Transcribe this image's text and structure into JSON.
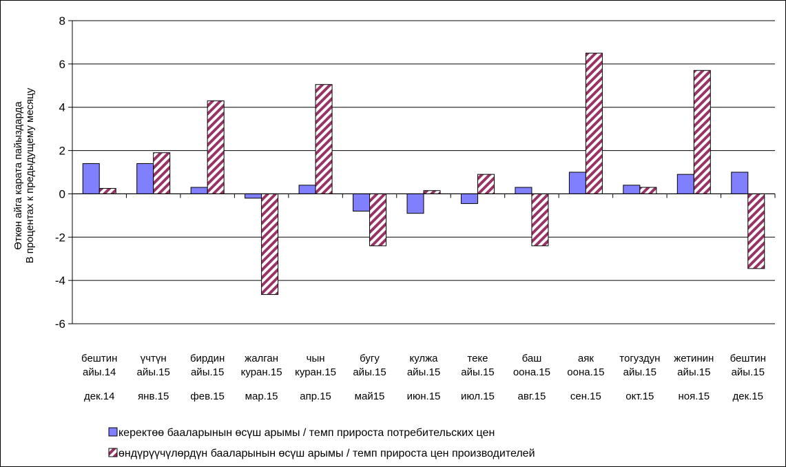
{
  "chart_data": {
    "type": "bar",
    "title": "",
    "ylabel_lines": [
      "Өткөн айга карата пайыздарда",
      "В процентах к предыдущему месяцу"
    ],
    "ylim": [
      -6,
      8
    ],
    "yticks": [
      -6,
      -4,
      -2,
      0,
      2,
      4,
      6,
      8
    ],
    "grid": true,
    "legend_position": "bottom",
    "categories": [
      {
        "kg": [
          "бештин",
          "айы.14"
        ],
        "ru": "дек.14"
      },
      {
        "kg": [
          "үчтүн",
          "айы.15"
        ],
        "ru": "янв.15"
      },
      {
        "kg": [
          "бирдин",
          "айы.15"
        ],
        "ru": "фев.15"
      },
      {
        "kg": [
          "жалган",
          "куран.15"
        ],
        "ru": "мар.15"
      },
      {
        "kg": [
          "чын",
          "куран.15"
        ],
        "ru": "апр.15"
      },
      {
        "kg": [
          "бугу",
          "айы.15"
        ],
        "ru": "май15"
      },
      {
        "kg": [
          "кулжа",
          "айы.15"
        ],
        "ru": "июн.15"
      },
      {
        "kg": [
          "теке",
          "айы.15"
        ],
        "ru": "июл.15"
      },
      {
        "kg": [
          "баш",
          "оона.15"
        ],
        "ru": "авг.15"
      },
      {
        "kg": [
          "аяк",
          "оона.15"
        ],
        "ru": "сен.15"
      },
      {
        "kg": [
          "тогуздун",
          "айы.15"
        ],
        "ru": "окт.15"
      },
      {
        "kg": [
          "жетинин",
          "айы.15"
        ],
        "ru": "ноя.15"
      },
      {
        "kg": [
          "бештин",
          "айы.15"
        ],
        "ru": "дек.15"
      }
    ],
    "series": [
      {
        "name": "керектөө бааларынын өсүш арымы / темп прироста потребительских цен",
        "color": "#8080ff",
        "pattern": "solid",
        "values": [
          1.4,
          1.4,
          0.3,
          -0.2,
          0.4,
          -0.8,
          -0.9,
          -0.45,
          0.3,
          1.0,
          0.4,
          0.9,
          1.0
        ]
      },
      {
        "name": "өндүрүүчүлөрдүн бааларынын өсүш арымы / темп прироста цен производителей",
        "color": "#993366",
        "pattern": "diagonal-stripes",
        "values": [
          0.25,
          1.9,
          4.3,
          -4.65,
          5.05,
          -2.4,
          0.15,
          0.9,
          -2.4,
          6.5,
          0.3,
          5.7,
          -3.45
        ]
      }
    ]
  }
}
